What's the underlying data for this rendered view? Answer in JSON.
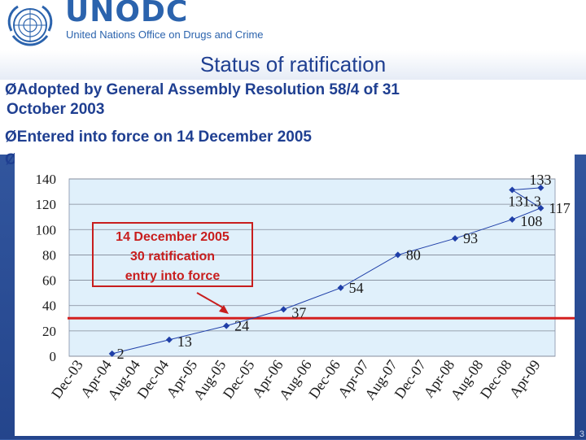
{
  "header": {
    "logo_word": "UNODC",
    "logo_subtitle": "United Nations Office on Drugs and Crime",
    "brand_color": "#2b63ad"
  },
  "title": "Status of ratification",
  "bullets": [
    {
      "marker": "Ø",
      "lines": [
        "Adopted by General Assembly Resolution 58/4 of 31",
        "October 2003"
      ]
    },
    {
      "marker": "Ø",
      "lines": [
        "Entered into force on 14 December 2005"
      ]
    },
    {
      "marker": "Ø",
      "lines": [
        ""
      ]
    }
  ],
  "page_number": "3",
  "chart_data": {
    "type": "line",
    "categories": [
      "Dec-03",
      "Apr-04",
      "Aug-04",
      "Dec-04",
      "Apr-05",
      "Aug-05",
      "Dec-05",
      "Apr-06",
      "Aug-06",
      "Dec-06",
      "Apr-07",
      "Aug-07",
      "Dec-07",
      "Apr-08",
      "Aug-08",
      "Dec-08",
      "Apr-09"
    ],
    "series": [
      {
        "points": [
          {
            "x": "Apr-04",
            "y": 2,
            "label": "2"
          },
          {
            "x": "Dec-04",
            "y": 13,
            "label": "13"
          },
          {
            "x": "Aug-05",
            "y": 24,
            "label": "24"
          },
          {
            "x": "Apr-06",
            "y": 37,
            "label": "37"
          },
          {
            "x": "Dec-06",
            "y": 54,
            "label": "54"
          },
          {
            "x": "Aug-07",
            "y": 80,
            "label": "80"
          },
          {
            "x": "Apr-08",
            "y": 93,
            "label": "93"
          },
          {
            "x": "Dec-08",
            "y": 108,
            "label": "108"
          },
          {
            "x": "Apr-09",
            "y": 117,
            "label": "117"
          },
          {
            "x": "Dec-08",
            "y": 131.3,
            "label": "131.3"
          },
          {
            "x": "Apr-09",
            "y": 133,
            "label": "133"
          }
        ]
      }
    ],
    "ylim": [
      0,
      140
    ],
    "yticks": [
      0,
      20,
      40,
      60,
      80,
      100,
      120,
      140
    ],
    "grid": true,
    "threshold": {
      "value": 30,
      "color": "#d42020"
    },
    "annotation": {
      "lines": [
        "14 December 2005",
        "30 ratification",
        "entry into force"
      ],
      "color": "#c81e1e"
    },
    "line_color": "#1f3fa8",
    "plot_background": "#e0f0fb"
  }
}
